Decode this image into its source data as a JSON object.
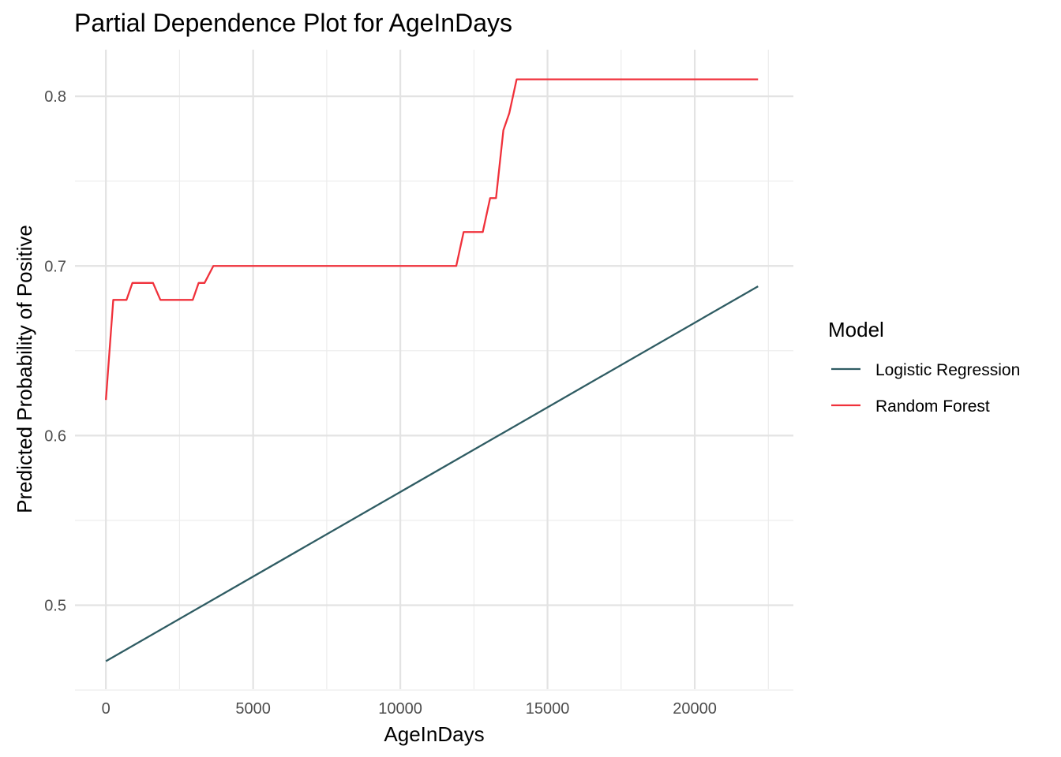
{
  "chart_data": {
    "type": "line",
    "title": "Partial Dependence Plot for AgeInDays",
    "xlabel": "AgeInDays",
    "ylabel": "Predicted Probability of Positive",
    "xlim": [
      -1050,
      23350
    ],
    "ylim": [
      0.4505,
      0.8275
    ],
    "x_major_ticks": [
      0,
      5000,
      10000,
      15000,
      20000
    ],
    "x_major_tick_labels": [
      "0",
      "5000",
      "10000",
      "15000",
      "20000"
    ],
    "x_minor_ticks": [
      2500,
      7500,
      12500,
      17500,
      22500
    ],
    "y_major_ticks": [
      0.5,
      0.6,
      0.7,
      0.8
    ],
    "y_major_tick_labels": [
      "0.5",
      "0.6",
      "0.7",
      "0.8"
    ],
    "y_minor_ticks": [
      0.45,
      0.55,
      0.65,
      0.75
    ],
    "grid": true,
    "legend": {
      "title": "Model",
      "position": "right"
    },
    "series": [
      {
        "name": "Logistic Regression",
        "color": "#2f5c63",
        "x": [
          0,
          22150
        ],
        "y": [
          0.467,
          0.688
        ]
      },
      {
        "name": "Random Forest",
        "color": "#f0313b",
        "x": [
          0,
          250,
          700,
          900,
          1600,
          1850,
          2950,
          3150,
          3350,
          3650,
          11900,
          12150,
          12800,
          13050,
          13250,
          13500,
          13700,
          13950,
          22150
        ],
        "y": [
          0.621,
          0.68,
          0.68,
          0.69,
          0.69,
          0.68,
          0.68,
          0.69,
          0.69,
          0.7,
          0.7,
          0.72,
          0.72,
          0.74,
          0.74,
          0.78,
          0.79,
          0.81,
          0.81
        ]
      }
    ]
  }
}
